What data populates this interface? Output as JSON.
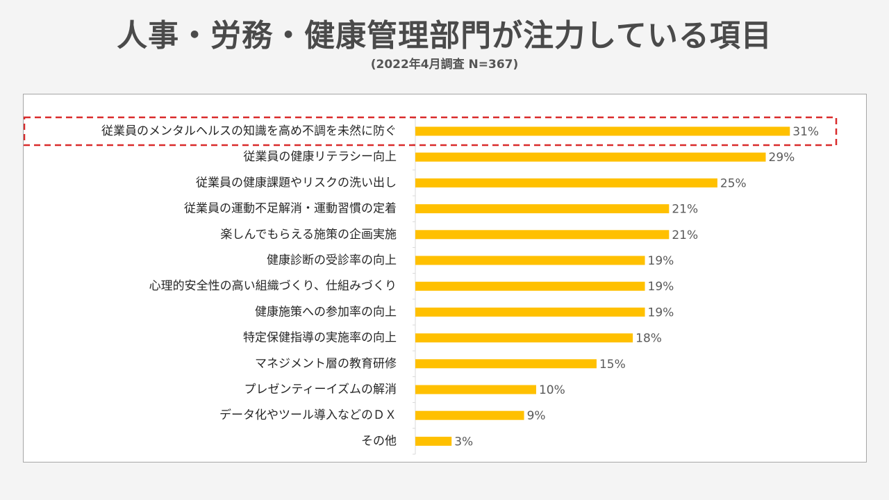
{
  "header": {
    "title": "人事・労務・健康管理部門が注力している項目",
    "subtitle": "(2022年4月調査 N=367)"
  },
  "colors": {
    "bar": "#FFC000",
    "highlight": "#D92B2B",
    "axis": "#D9D9D9"
  },
  "chart_data": {
    "type": "bar",
    "orientation": "horizontal",
    "title": "人事・労務・健康管理部門が注力している項目",
    "subtitle": "(2022年4月調査 N=367)",
    "categories": [
      "従業員のメンタルヘルスの知識を高め不調を未然に防ぐ",
      "従業員の健康リテラシー向上",
      "従業員の健康課題やリスクの洗い出し",
      "従業員の運動不足解消・運動習慣の定着",
      "楽しんでもらえる施策の企画実施",
      "健康診断の受診率の向上",
      "心理的安全性の高い組織づくり、仕組みづくり",
      "健康施策への参加率の向上",
      "特定保健指導の実施率の向上",
      "マネジメント層の教育研修",
      "プレゼンティーイズムの解消",
      "データ化やツール導入などのＤＸ",
      "その他"
    ],
    "values": [
      31,
      29,
      25,
      21,
      21,
      19,
      19,
      19,
      18,
      15,
      10,
      9,
      3
    ],
    "value_labels": [
      "31%",
      "29%",
      "25%",
      "21%",
      "21%",
      "19%",
      "19%",
      "19%",
      "18%",
      "15%",
      "10%",
      "9%",
      "3%"
    ],
    "unit": "%",
    "xlim": [
      0,
      31.5
    ],
    "grid": false,
    "highlighted_index": 0
  }
}
